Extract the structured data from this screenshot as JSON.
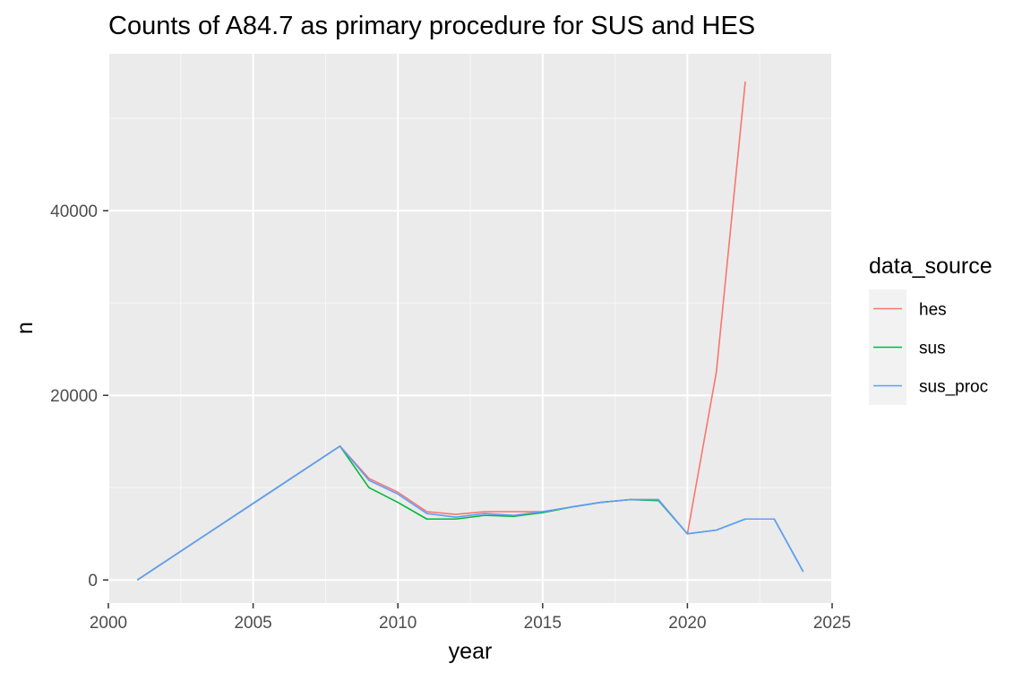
{
  "chart_data": {
    "type": "line",
    "title": "Counts of A84.7 as primary procedure for SUS and HES",
    "xlabel": "year",
    "ylabel": "n",
    "xlim": [
      2000,
      2025
    ],
    "ylim": [
      -2500,
      57000
    ],
    "x_ticks": [
      2000,
      2005,
      2010,
      2015,
      2020,
      2025
    ],
    "y_ticks": [
      0,
      20000,
      40000
    ],
    "grid": true,
    "legend": {
      "title": "data_source",
      "position": "right"
    },
    "series": [
      {
        "name": "hes",
        "color": "#F8766D",
        "points": [
          [
            2001,
            0
          ],
          [
            2008,
            14500
          ],
          [
            2009,
            11000
          ],
          [
            2010,
            9500
          ],
          [
            2011,
            7400
          ],
          [
            2012,
            7100
          ],
          [
            2013,
            7400
          ],
          [
            2014,
            7400
          ],
          [
            2015,
            7400
          ],
          [
            2016,
            7900
          ],
          [
            2017,
            8400
          ],
          [
            2018,
            8700
          ],
          [
            2019,
            8700
          ],
          [
            2020,
            5000
          ],
          [
            2021,
            22500
          ],
          [
            2022,
            54000
          ]
        ]
      },
      {
        "name": "sus",
        "color": "#00BA38",
        "points": [
          [
            2001,
            0
          ],
          [
            2008,
            14500
          ],
          [
            2009,
            10000
          ],
          [
            2010,
            8400
          ],
          [
            2011,
            6600
          ],
          [
            2012,
            6600
          ],
          [
            2013,
            7000
          ],
          [
            2014,
            6900
          ],
          [
            2015,
            7300
          ],
          [
            2016,
            7900
          ],
          [
            2017,
            8400
          ],
          [
            2018,
            8700
          ],
          [
            2019,
            8600
          ],
          [
            2020,
            5000
          ],
          [
            2021,
            5400
          ],
          [
            2022,
            6600
          ],
          [
            2023,
            6600
          ],
          [
            2024,
            900
          ]
        ]
      },
      {
        "name": "sus_proc",
        "color": "#619CFF",
        "points": [
          [
            2001,
            0
          ],
          [
            2008,
            14500
          ],
          [
            2009,
            10800
          ],
          [
            2010,
            9300
          ],
          [
            2011,
            7200
          ],
          [
            2012,
            6800
          ],
          [
            2013,
            7200
          ],
          [
            2014,
            7000
          ],
          [
            2015,
            7400
          ],
          [
            2016,
            7900
          ],
          [
            2017,
            8400
          ],
          [
            2018,
            8700
          ],
          [
            2019,
            8700
          ],
          [
            2020,
            5000
          ],
          [
            2021,
            5400
          ],
          [
            2022,
            6600
          ],
          [
            2023,
            6600
          ],
          [
            2024,
            900
          ]
        ]
      }
    ]
  },
  "theme": {
    "panel_background": "#EBEBEB",
    "grid_major": "#FFFFFF",
    "grid_minor": "#F7F7F7",
    "legend_key_background": "#F2F2F2"
  }
}
